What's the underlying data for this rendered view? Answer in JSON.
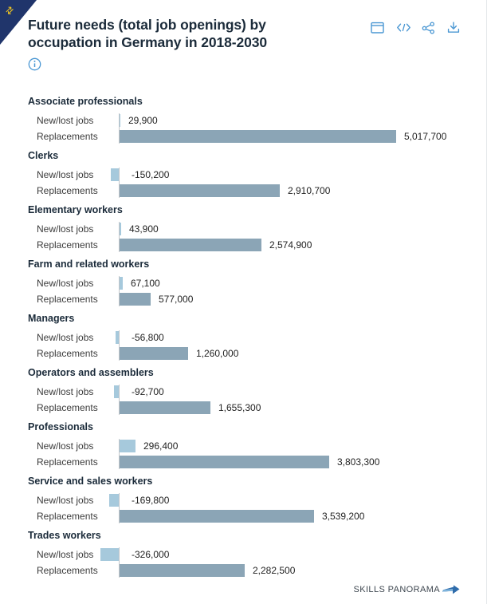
{
  "header": {
    "title_line1": "Future needs (total job openings) by",
    "title_line2": "occupation in Germany in 2018-2030",
    "toolbar_icons": [
      "calendar-icon",
      "embed-code-icon",
      "share-icon",
      "download-icon"
    ],
    "info_icon": "info-icon"
  },
  "chart_data": {
    "type": "bar",
    "orientation": "horizontal",
    "title": "Future needs (total job openings) by occupation in Germany in 2018-2030",
    "series": [
      "New/lost jobs",
      "Replacements"
    ],
    "row_labels": {
      "new_lost": "New/lost jobs",
      "replacements": "Replacements"
    },
    "xmax": 5017700,
    "grid": false,
    "legend": "none",
    "colors": {
      "new_lost": "#a6c9dc",
      "replacements": "#8ba5b6",
      "baseline": "#c2c6c9"
    },
    "groups": [
      {
        "category": "Associate professionals",
        "values": {
          "new_lost": 29900,
          "replacements": 5017700
        },
        "labels": {
          "new_lost": "29,900",
          "replacements": "5,017,700"
        }
      },
      {
        "category": "Clerks",
        "values": {
          "new_lost": -150200,
          "replacements": 2910700
        },
        "labels": {
          "new_lost": "-150,200",
          "replacements": "2,910,700"
        }
      },
      {
        "category": "Elementary workers",
        "values": {
          "new_lost": 43900,
          "replacements": 2574900
        },
        "labels": {
          "new_lost": "43,900",
          "replacements": "2,574,900"
        }
      },
      {
        "category": "Farm and related workers",
        "values": {
          "new_lost": 67100,
          "replacements": 577000
        },
        "labels": {
          "new_lost": "67,100",
          "replacements": "577,000"
        }
      },
      {
        "category": "Managers",
        "values": {
          "new_lost": -56800,
          "replacements": 1260000
        },
        "labels": {
          "new_lost": "-56,800",
          "replacements": "1,260,000"
        }
      },
      {
        "category": "Operators and assemblers",
        "values": {
          "new_lost": -92700,
          "replacements": 1655300
        },
        "labels": {
          "new_lost": "-92,700",
          "replacements": "1,655,300"
        }
      },
      {
        "category": "Professionals",
        "values": {
          "new_lost": 296400,
          "replacements": 3803300
        },
        "labels": {
          "new_lost": "296,400",
          "replacements": "3,803,300"
        }
      },
      {
        "category": "Service and sales workers",
        "values": {
          "new_lost": -169800,
          "replacements": 3539200
        },
        "labels": {
          "new_lost": "-169,800",
          "replacements": "3,539,200"
        }
      },
      {
        "category": "Trades workers",
        "values": {
          "new_lost": -326000,
          "replacements": 2282500
        },
        "labels": {
          "new_lost": "-326,000",
          "replacements": "2,282,500"
        }
      }
    ]
  },
  "footer": {
    "brand": "SKILLS PANORAMA"
  },
  "ribbon": {
    "glyph": "⇄"
  }
}
